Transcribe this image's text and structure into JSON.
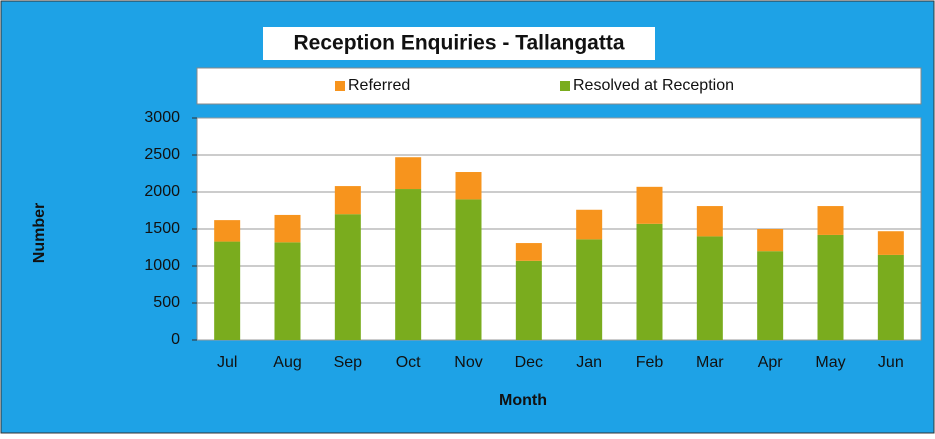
{
  "chart_data": {
    "type": "stacked_bar",
    "title": "Reception Enquiries - Tallangatta",
    "xlabel": "Month",
    "ylabel": "Number",
    "categories": [
      "Jul",
      "Aug",
      "Sep",
      "Oct",
      "Nov",
      "Dec",
      "Jan",
      "Feb",
      "Mar",
      "Apr",
      "May",
      "Jun"
    ],
    "series": [
      {
        "name": "Referred",
        "color": "#f7941d",
        "values": [
          290,
          370,
          380,
          430,
          370,
          240,
          400,
          500,
          410,
          300,
          390,
          320
        ]
      },
      {
        "name": "Resolved at Reception",
        "color": "#7aac1e",
        "values": [
          1330,
          1320,
          1700,
          2040,
          1900,
          1070,
          1360,
          1570,
          1400,
          1200,
          1420,
          1150
        ]
      }
    ],
    "ylim": [
      0,
      3000
    ],
    "yticks": [
      0,
      500,
      1000,
      1500,
      2000,
      2500,
      3000
    ],
    "grid": true,
    "legend": "top"
  }
}
